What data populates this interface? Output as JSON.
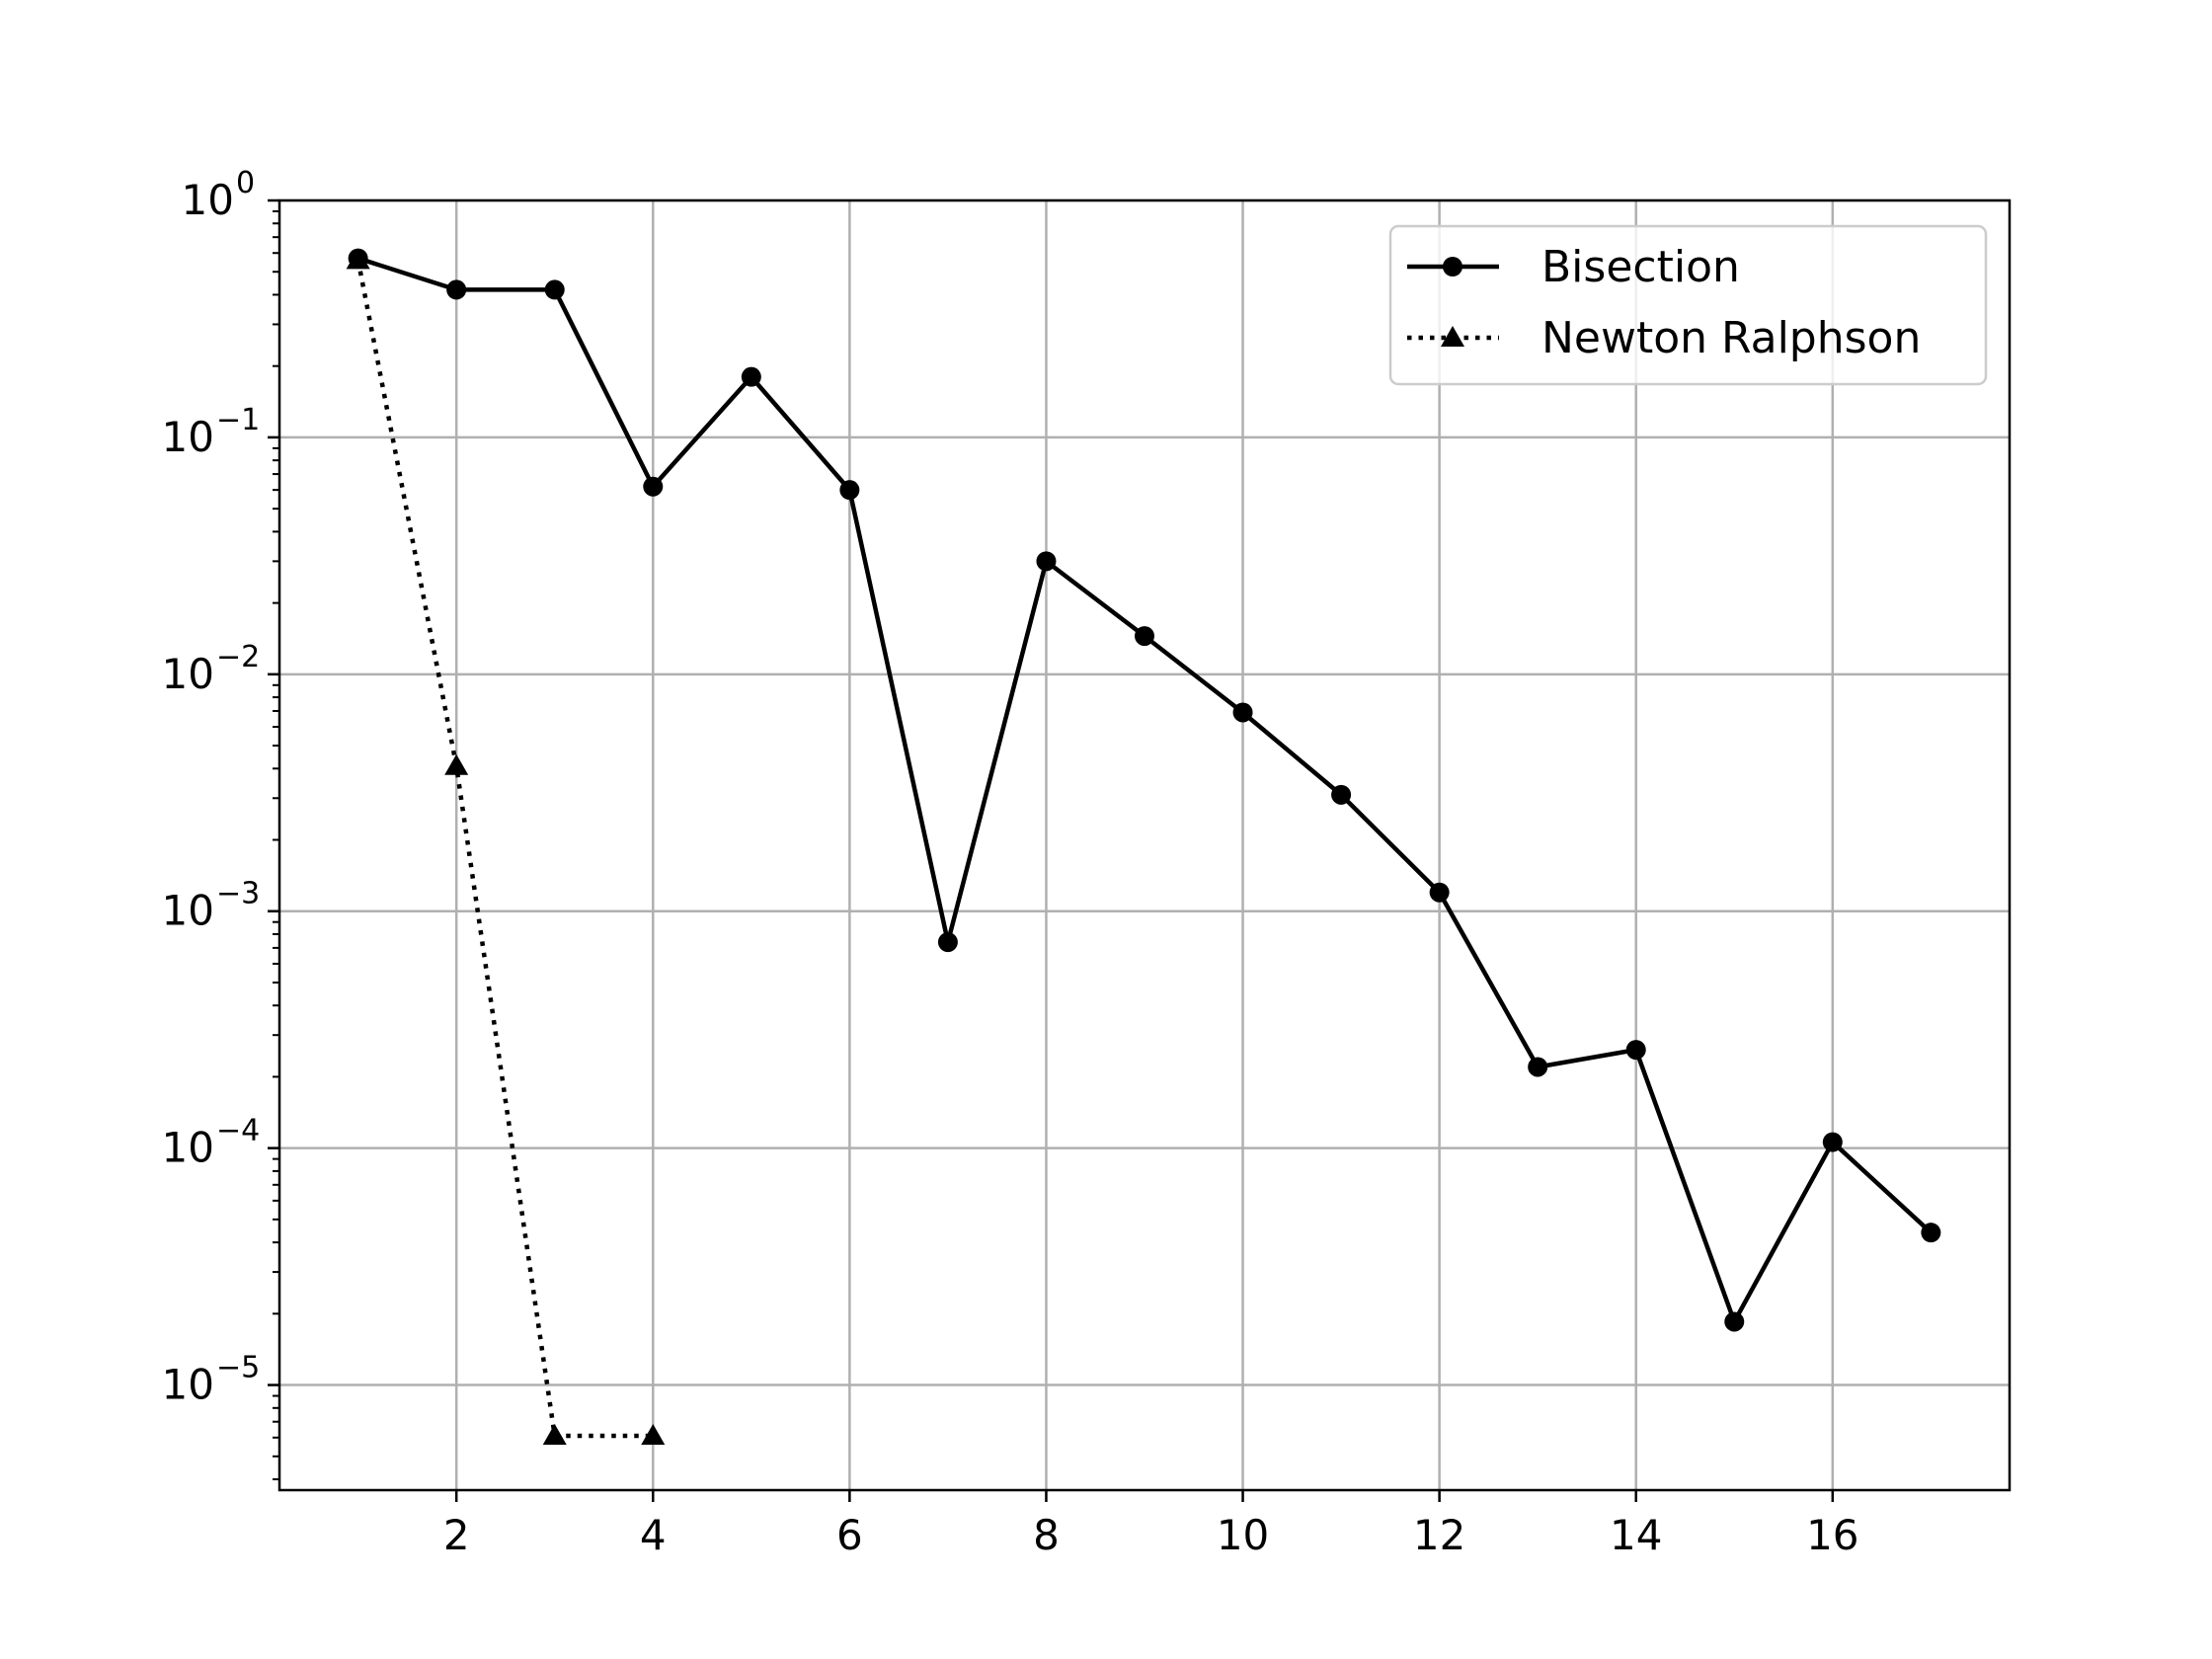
{
  "chart_data": {
    "type": "line",
    "title": "",
    "xlabel": "",
    "ylabel": "",
    "x_scale": "linear",
    "y_scale": "log",
    "xlim": [
      0.2,
      17.8
    ],
    "ylim": [
      3.6e-06,
      1.0
    ],
    "x_ticks": [
      2,
      4,
      6,
      8,
      10,
      12,
      14,
      16
    ],
    "x_tick_labels": [
      "2",
      "4",
      "6",
      "8",
      "10",
      "12",
      "14",
      "16"
    ],
    "y_ticks": [
      {
        "value": 1,
        "base": "10",
        "exponent": "0"
      },
      {
        "value": 0.1,
        "base": "10",
        "exponent": "−1"
      },
      {
        "value": 0.01,
        "base": "10",
        "exponent": "−2"
      },
      {
        "value": 0.001,
        "base": "10",
        "exponent": "−3"
      },
      {
        "value": 0.0001,
        "base": "10",
        "exponent": "−4"
      },
      {
        "value": 1e-05,
        "base": "10",
        "exponent": "−5"
      }
    ],
    "grid": true,
    "legend_position": "top-right",
    "series": [
      {
        "name": "Bisection",
        "color": "#000000",
        "line_style": "solid",
        "marker": "circle",
        "x": [
          1,
          2,
          3,
          4,
          5,
          6,
          7,
          8,
          9,
          10,
          11,
          12,
          13,
          14,
          15,
          16,
          17
        ],
        "y": [
          0.57,
          0.42,
          0.42,
          0.062,
          0.18,
          0.06,
          0.00074,
          0.03,
          0.0145,
          0.0069,
          0.0031,
          0.0012,
          0.00022,
          0.00026,
          1.85e-05,
          0.000106,
          4.4e-05
        ]
      },
      {
        "name": "Newton Ralphson",
        "color": "#000000",
        "line_style": "dotted",
        "marker": "triangle",
        "x": [
          1,
          2,
          3,
          4
        ],
        "y": [
          0.56,
          0.0041,
          6.1e-06,
          6.1e-06
        ]
      }
    ]
  }
}
